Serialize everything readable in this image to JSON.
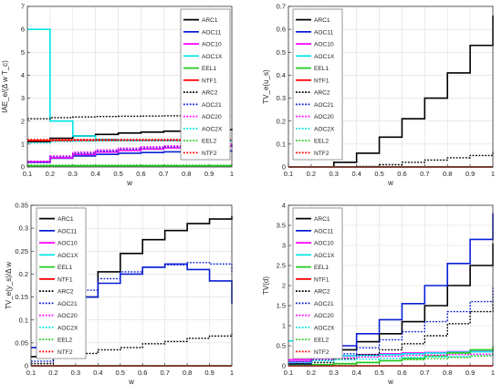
{
  "figure": {
    "legend_entries": [
      {
        "name": "ARC1",
        "color": "#000000",
        "dash": "solid"
      },
      {
        "name": "AOC11",
        "color": "#0a1fd6",
        "dash": "solid"
      },
      {
        "name": "AOC10",
        "color": "#ff00ff",
        "dash": "solid"
      },
      {
        "name": "AOC1X",
        "color": "#00e5e5",
        "dash": "solid"
      },
      {
        "name": "EEL1",
        "color": "#22cc22",
        "dash": "solid"
      },
      {
        "name": "NTF1",
        "color": "#ff0000",
        "dash": "solid"
      },
      {
        "name": "ARC2",
        "color": "#000000",
        "dash": "dotted"
      },
      {
        "name": "AOC21",
        "color": "#0a1fd6",
        "dash": "dotted"
      },
      {
        "name": "AOC20",
        "color": "#ff00ff",
        "dash": "dotted"
      },
      {
        "name": "AOC2X",
        "color": "#00e5e5",
        "dash": "dotted"
      },
      {
        "name": "EEL2",
        "color": "#22cc22",
        "dash": "dotted"
      },
      {
        "name": "NTF2",
        "color": "#ff0000",
        "dash": "dotted"
      }
    ]
  },
  "chart_data": [
    {
      "type": "line",
      "title": "",
      "xlabel": "w",
      "ylabel": "IAE_e/(Δ w T_c)",
      "xlim": [
        0.1,
        1
      ],
      "ylim": [
        0,
        7
      ],
      "xticks": [
        "0.1",
        "0.2",
        "0.3",
        "0.4",
        "0.5",
        "0.6",
        "0.7",
        "0.8",
        "0.9",
        "1"
      ],
      "yticks": [
        "0",
        "1",
        "2",
        "3",
        "4",
        "5",
        "6",
        "7"
      ],
      "grid": true,
      "legend": "top-right",
      "x": [
        0.1,
        0.2,
        0.3,
        0.4,
        0.5,
        0.6,
        0.7,
        0.8,
        0.9,
        1.0
      ],
      "series": [
        {
          "name": "ARC1",
          "values": [
            1.1,
            1.25,
            1.35,
            1.42,
            1.48,
            1.52,
            1.56,
            1.6,
            1.63,
            1.66
          ]
        },
        {
          "name": "AOC11",
          "values": [
            0.2,
            0.38,
            0.48,
            0.55,
            0.6,
            0.63,
            0.66,
            0.68,
            0.7,
            0.71
          ]
        },
        {
          "name": "AOC10",
          "values": [
            0.22,
            0.4,
            0.55,
            0.65,
            0.72,
            0.78,
            0.83,
            0.87,
            0.9,
            0.92
          ]
        },
        {
          "name": "AOC1X",
          "values": [
            6.0,
            2.0,
            1.35,
            1.2,
            1.15,
            1.15,
            1.15,
            1.15,
            1.15,
            1.15
          ]
        },
        {
          "name": "EEL1",
          "values": [
            0.05,
            0.05,
            0.05,
            0.05,
            0.05,
            0.05,
            0.05,
            0.05,
            0.05,
            0.05
          ]
        },
        {
          "name": "NTF1",
          "values": [
            1.15,
            1.15,
            1.15,
            1.15,
            1.15,
            1.15,
            1.15,
            1.15,
            1.15,
            1.15
          ]
        },
        {
          "name": "ARC2",
          "values": [
            2.1,
            2.15,
            2.18,
            2.2,
            2.21,
            2.22,
            2.23,
            2.24,
            2.25,
            2.25
          ]
        },
        {
          "name": "AOC21",
          "values": [
            0.22,
            0.45,
            0.6,
            0.7,
            0.78,
            0.84,
            0.88,
            0.92,
            0.95,
            0.97
          ]
        },
        {
          "name": "AOC20",
          "values": [
            0.25,
            0.48,
            0.65,
            0.75,
            0.82,
            0.88,
            0.92,
            0.96,
            0.99,
            1.01
          ]
        },
        {
          "name": "AOC2X",
          "values": [
            1.05,
            1.1,
            1.12,
            1.13,
            1.14,
            1.14,
            1.14,
            1.14,
            1.14,
            1.14
          ]
        },
        {
          "name": "EEL2",
          "values": [
            0.08,
            0.08,
            0.08,
            0.08,
            0.08,
            0.08,
            0.08,
            0.08,
            0.08,
            0.08
          ]
        },
        {
          "name": "NTF2",
          "values": [
            1.2,
            1.2,
            1.2,
            1.2,
            1.2,
            1.2,
            1.2,
            1.2,
            1.2,
            1.2
          ]
        }
      ]
    },
    {
      "type": "line",
      "title": "",
      "xlabel": "w",
      "ylabel": "TV_e(u_s)",
      "xlim": [
        0.1,
        1
      ],
      "ylim": [
        0,
        0.7
      ],
      "xticks": [
        "0.1",
        "0.2",
        "0.3",
        "0.4",
        "0.5",
        "0.6",
        "0.7",
        "0.8",
        "0.9",
        "1"
      ],
      "yticks": [
        "0",
        "0.1",
        "0.2",
        "0.3",
        "0.4",
        "0.5",
        "0.6",
        "0.7"
      ],
      "grid": true,
      "legend": "top-left",
      "x": [
        0.1,
        0.2,
        0.3,
        0.4,
        0.5,
        0.6,
        0.7,
        0.8,
        0.9,
        1.0
      ],
      "series": [
        {
          "name": "ARC1",
          "values": [
            0,
            0,
            0.02,
            0.06,
            0.13,
            0.21,
            0.3,
            0.41,
            0.53,
            0.66
          ]
        },
        {
          "name": "AOC11",
          "values": [
            0,
            0,
            0,
            0,
            0,
            0,
            0,
            0,
            0,
            0
          ]
        },
        {
          "name": "AOC10",
          "values": [
            0,
            0,
            0,
            0,
            0,
            0,
            0,
            0,
            0,
            0
          ]
        },
        {
          "name": "AOC1X",
          "values": [
            0,
            0,
            0,
            0,
            0,
            0,
            0,
            0,
            0,
            0
          ]
        },
        {
          "name": "EEL1",
          "values": [
            0,
            0,
            0,
            0,
            0,
            0,
            0,
            0,
            0,
            0
          ]
        },
        {
          "name": "NTF1",
          "values": [
            0,
            0,
            0,
            0,
            0,
            0,
            0,
            0,
            0,
            0
          ]
        },
        {
          "name": "ARC2",
          "values": [
            0,
            0,
            0,
            0.002,
            0.01,
            0.02,
            0.03,
            0.04,
            0.05,
            0.07
          ]
        },
        {
          "name": "AOC21",
          "values": [
            0,
            0,
            0,
            0,
            0,
            0,
            0,
            0,
            0,
            0
          ]
        },
        {
          "name": "AOC20",
          "values": [
            0,
            0,
            0,
            0,
            0,
            0,
            0,
            0,
            0,
            0
          ]
        },
        {
          "name": "AOC2X",
          "values": [
            0,
            0,
            0,
            0,
            0,
            0,
            0,
            0,
            0,
            0
          ]
        },
        {
          "name": "EEL2",
          "values": [
            0,
            0,
            0,
            0,
            0,
            0,
            0,
            0,
            0,
            0
          ]
        },
        {
          "name": "NTF2",
          "values": [
            0,
            0,
            0,
            0,
            0,
            0,
            0,
            0,
            0,
            0
          ]
        }
      ]
    },
    {
      "type": "line",
      "title": "",
      "xlabel": "w",
      "ylabel": "TV_e(y_s)/Δ w",
      "xlim": [
        0.1,
        1
      ],
      "ylim": [
        0,
        0.35
      ],
      "xticks": [
        "0.1",
        "0.2",
        "0.3",
        "0.4",
        "0.5",
        "0.6",
        "0.7",
        "0.8",
        "0.9",
        "1"
      ],
      "yticks": [
        "0",
        "0.05",
        "0.1",
        "0.15",
        "0.2",
        "0.25",
        "0.3",
        "0.35"
      ],
      "grid": true,
      "legend": "top-left",
      "x": [
        0.1,
        0.2,
        0.3,
        0.4,
        0.5,
        0.6,
        0.7,
        0.8,
        0.9,
        1.0
      ],
      "series": [
        {
          "name": "ARC1",
          "values": [
            0.02,
            0.07,
            0.15,
            0.205,
            0.245,
            0.275,
            0.295,
            0.31,
            0.32,
            0.327
          ]
        },
        {
          "name": "AOC11",
          "values": [
            0.04,
            0.1,
            0.15,
            0.18,
            0.2,
            0.215,
            0.222,
            0.21,
            0.185,
            0.135
          ]
        },
        {
          "name": "AOC10",
          "values": [
            0,
            0,
            0,
            0,
            0,
            0,
            0,
            0,
            0,
            0
          ]
        },
        {
          "name": "AOC1X",
          "values": [
            0,
            0,
            0,
            0,
            0,
            0,
            0,
            0,
            0,
            0
          ]
        },
        {
          "name": "EEL1",
          "values": [
            0,
            0,
            0,
            0,
            0,
            0,
            0,
            0,
            0,
            0
          ]
        },
        {
          "name": "NTF1",
          "values": [
            0,
            0,
            0,
            0,
            0,
            0,
            0,
            0,
            0,
            0
          ]
        },
        {
          "name": "ARC2",
          "values": [
            0.005,
            0.02,
            0.027,
            0.035,
            0.04,
            0.048,
            0.053,
            0.06,
            0.065,
            0.07
          ]
        },
        {
          "name": "AOC21",
          "values": [
            0.01,
            0.09,
            0.165,
            0.19,
            0.205,
            0.215,
            0.22,
            0.225,
            0.222,
            0.205
          ]
        },
        {
          "name": "AOC20",
          "values": [
            0,
            0,
            0,
            0,
            0,
            0,
            0,
            0,
            0,
            0
          ]
        },
        {
          "name": "AOC2X",
          "values": [
            0,
            0,
            0,
            0,
            0,
            0,
            0,
            0,
            0,
            0
          ]
        },
        {
          "name": "EEL2",
          "values": [
            0,
            0,
            0,
            0,
            0,
            0,
            0,
            0,
            0,
            0
          ]
        },
        {
          "name": "NTF2",
          "values": [
            0,
            0,
            0,
            0,
            0,
            0,
            0,
            0,
            0,
            0
          ]
        }
      ]
    },
    {
      "type": "line",
      "title": "",
      "xlabel": "w",
      "ylabel": "TV(d)",
      "xlim": [
        0.1,
        1
      ],
      "ylim": [
        0,
        4
      ],
      "xticks": [
        "0.1",
        "0.2",
        "0.3",
        "0.4",
        "0.5",
        "0.6",
        "0.7",
        "0.8",
        "0.9",
        "1"
      ],
      "yticks": [
        "0",
        "0.5",
        "1",
        "1.5",
        "2",
        "2.5",
        "3",
        "3.5",
        "4"
      ],
      "grid": true,
      "legend": "top-left",
      "x": [
        0.1,
        0.2,
        0.3,
        0.4,
        0.5,
        0.6,
        0.7,
        0.8,
        0.9,
        1.0
      ],
      "series": [
        {
          "name": "ARC1",
          "values": [
            0.05,
            0.2,
            0.4,
            0.6,
            0.8,
            1.1,
            1.5,
            2.0,
            2.5,
            3.05
          ]
        },
        {
          "name": "AOC11",
          "values": [
            0.1,
            0.3,
            0.5,
            0.8,
            1.15,
            1.55,
            2.0,
            2.55,
            3.15,
            3.8
          ]
        },
        {
          "name": "AOC10",
          "values": [
            0.15,
            0.25,
            0.25,
            0.28,
            0.3,
            0.32,
            0.33,
            0.35,
            0.36,
            0.38
          ]
        },
        {
          "name": "AOC1X",
          "values": [
            0.62,
            0.25,
            0.25,
            0.26,
            0.28,
            0.3,
            0.32,
            0.34,
            0.35,
            0.37
          ]
        },
        {
          "name": "EEL1",
          "values": [
            0.02,
            0.03,
            0.05,
            0.08,
            0.13,
            0.18,
            0.25,
            0.32,
            0.4,
            0.48
          ]
        },
        {
          "name": "NTF1",
          "values": [
            0,
            0,
            0,
            0,
            0,
            0,
            0,
            0,
            0,
            0
          ]
        },
        {
          "name": "ARC2",
          "values": [
            0.02,
            0.08,
            0.18,
            0.28,
            0.4,
            0.55,
            0.75,
            1.05,
            1.35,
            1.6
          ]
        },
        {
          "name": "AOC21",
          "values": [
            0.05,
            0.15,
            0.3,
            0.45,
            0.65,
            0.85,
            1.1,
            1.35,
            1.6,
            1.95
          ]
        },
        {
          "name": "AOC20",
          "values": [
            0.1,
            0.18,
            0.2,
            0.22,
            0.24,
            0.26,
            0.27,
            0.28,
            0.29,
            0.3
          ]
        },
        {
          "name": "AOC2X",
          "values": [
            0.08,
            0.12,
            0.15,
            0.17,
            0.19,
            0.21,
            0.22,
            0.23,
            0.25,
            0.26
          ]
        },
        {
          "name": "EEL2",
          "values": [
            0.01,
            0.03,
            0.06,
            0.09,
            0.12,
            0.15,
            0.18,
            0.21,
            0.25,
            0.3
          ]
        },
        {
          "name": "NTF2",
          "values": [
            0,
            0,
            0,
            0,
            0,
            0,
            0,
            0,
            0,
            0
          ]
        }
      ]
    }
  ]
}
